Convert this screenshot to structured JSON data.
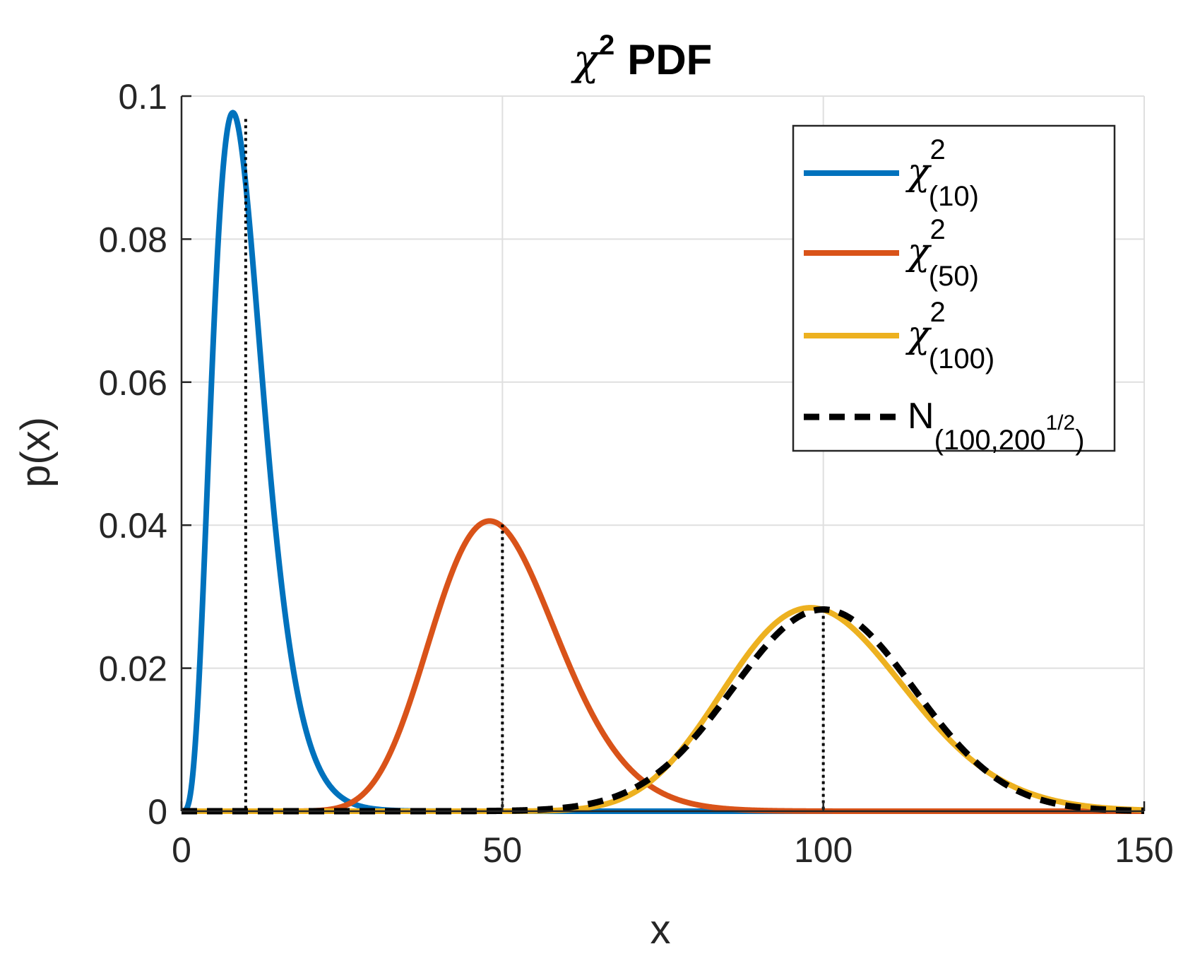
{
  "chart_data": {
    "type": "line",
    "title": {
      "chi": "χ",
      "sup": "2",
      "text": "PDF"
    },
    "xlabel": "x",
    "ylabel": "p(x)",
    "xlim": [
      0,
      150
    ],
    "ylim": [
      0,
      0.1
    ],
    "xticks": [
      0,
      50,
      100,
      150
    ],
    "xtick_labels": [
      "0",
      "50",
      "100",
      "150"
    ],
    "yticks": [
      0,
      0.02,
      0.04,
      0.06,
      0.08,
      0.1
    ],
    "ytick_labels": [
      "0",
      "0.02",
      "0.04",
      "0.06",
      "0.08",
      "0.1"
    ],
    "grid": true,
    "legend_position": "top-right",
    "series": [
      {
        "id": "chi10",
        "kind": "chi2",
        "df": 10,
        "color": "#0072BD",
        "style": "solid",
        "legend": {
          "main": "χ",
          "sup": "2",
          "sub": "(10)"
        }
      },
      {
        "id": "chi50",
        "kind": "chi2",
        "df": 50,
        "color": "#D95319",
        "style": "solid",
        "legend": {
          "main": "χ",
          "sup": "2",
          "sub": "(50)"
        }
      },
      {
        "id": "chi100",
        "kind": "chi2",
        "df": 100,
        "color": "#EDB120",
        "style": "solid",
        "legend": {
          "main": "χ",
          "sup": "2",
          "sub": "(100)"
        }
      },
      {
        "id": "normal",
        "kind": "normal",
        "mean": 100,
        "sd": 14.1421,
        "color": "#000000",
        "style": "dashed",
        "legend": {
          "main": "N",
          "sub": "(100,200",
          "subsup": "1/2",
          "subend": ")"
        }
      }
    ],
    "mean_markers": [
      {
        "x": 10,
        "y": 0.0968,
        "color": "#000000",
        "style": "dotted"
      },
      {
        "x": 50,
        "y": 0.0401,
        "color": "#000000",
        "style": "dotted"
      },
      {
        "x": 100,
        "y": 0.0282,
        "color": "#000000",
        "style": "dotted"
      }
    ]
  }
}
